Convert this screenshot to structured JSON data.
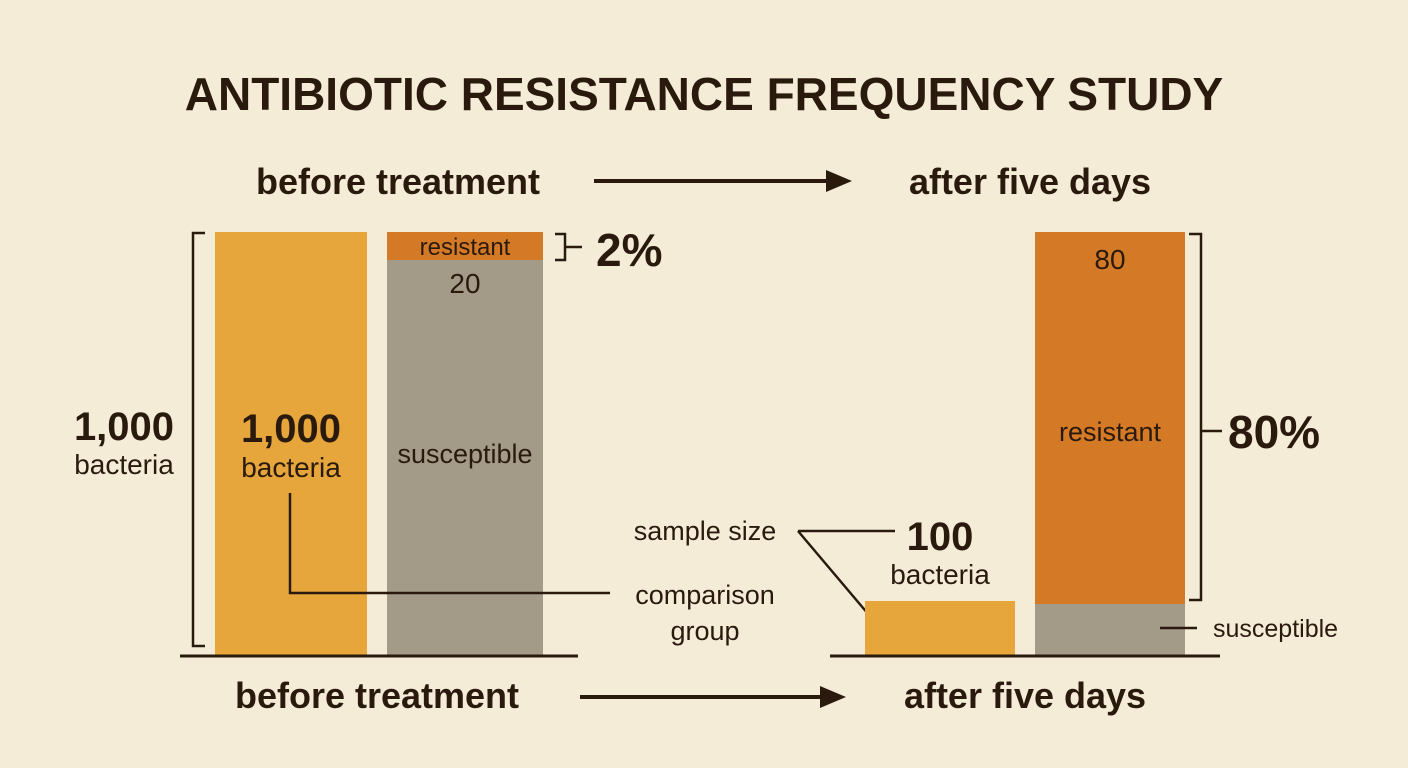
{
  "title": "ANTIBIOTIC RESISTANCE FREQUENCY STUDY",
  "top_phases": {
    "before": "before treatment",
    "after": "after five days"
  },
  "bottom_phases": {
    "before": "before treatment",
    "after": "after five days"
  },
  "left_bracket": {
    "count": "1,000",
    "unit": "bacteria"
  },
  "before_total_bar": {
    "count": "1,000",
    "unit": "bacteria"
  },
  "before_split_bar": {
    "resistant_label": "resistant",
    "resistant_count": "20",
    "susceptible_label": "susceptible",
    "resistant_percent": "2%"
  },
  "after_small_bar": {
    "count": "100",
    "unit": "bacteria"
  },
  "after_split_bar": {
    "resistant_count": "80",
    "resistant_label": "resistant",
    "resistant_percent": "80%",
    "susceptible_label": "susceptible"
  },
  "annotations": {
    "sample_size": "sample size",
    "comparison_group_line1": "comparison",
    "comparison_group_line2": "group"
  },
  "data_values": {
    "before_total": 1000,
    "before_resistant": 20,
    "before_resistant_fraction": 0.02,
    "after_total": 100,
    "after_resistant": 80,
    "after_resistant_fraction": 0.8
  },
  "colors": {
    "background": "#f5ecd8",
    "total_bar": "#e6a63c",
    "resistant": "#d47a26",
    "susceptible": "#a39a88",
    "ink": "#2a1a0e"
  }
}
